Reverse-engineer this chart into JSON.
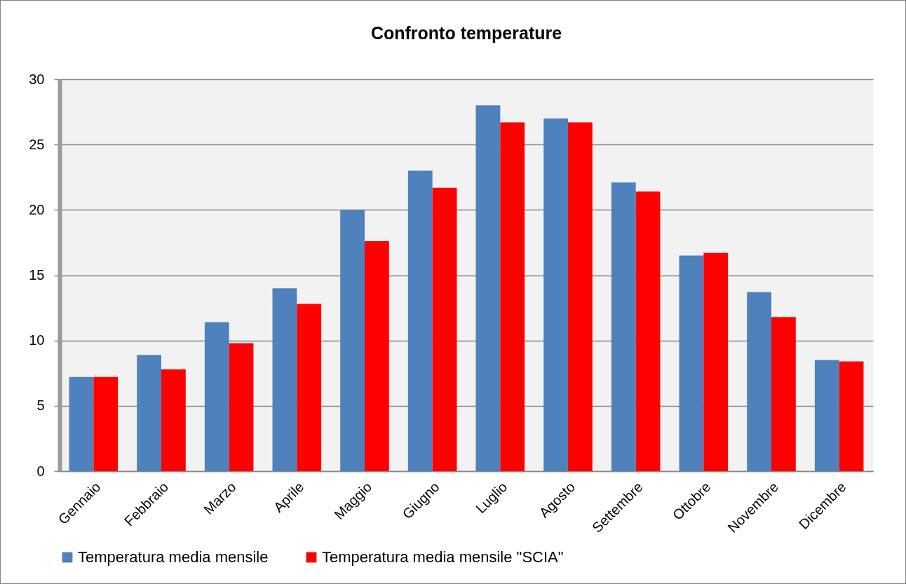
{
  "chart_data": {
    "type": "bar",
    "title": "Confronto temperature",
    "categories": [
      "Gennaio",
      "Febbraio",
      "Marzo",
      "Aprile",
      "Maggio",
      "Giugno",
      "Luglio",
      "Agosto",
      "Settembre",
      "Ottobre",
      "Novembre",
      "Dicembre"
    ],
    "series": [
      {
        "name": "Temperatura media mensile",
        "color": "#4f81bd",
        "values": [
          7.2,
          8.9,
          11.4,
          14.0,
          20.0,
          23.0,
          28.0,
          27.0,
          22.1,
          16.5,
          13.7,
          8.5
        ]
      },
      {
        "name": "Temperatura media mensile \"SCIA\"",
        "color": "#ff0000",
        "values": [
          7.2,
          7.8,
          9.8,
          12.8,
          17.6,
          21.7,
          26.7,
          26.7,
          21.4,
          16.7,
          11.8,
          8.4
        ]
      }
    ],
    "ylim": [
      0,
      30
    ],
    "yticks": [
      0,
      5,
      10,
      15,
      20,
      25,
      30
    ],
    "grid": "y",
    "legend": "bottom"
  }
}
